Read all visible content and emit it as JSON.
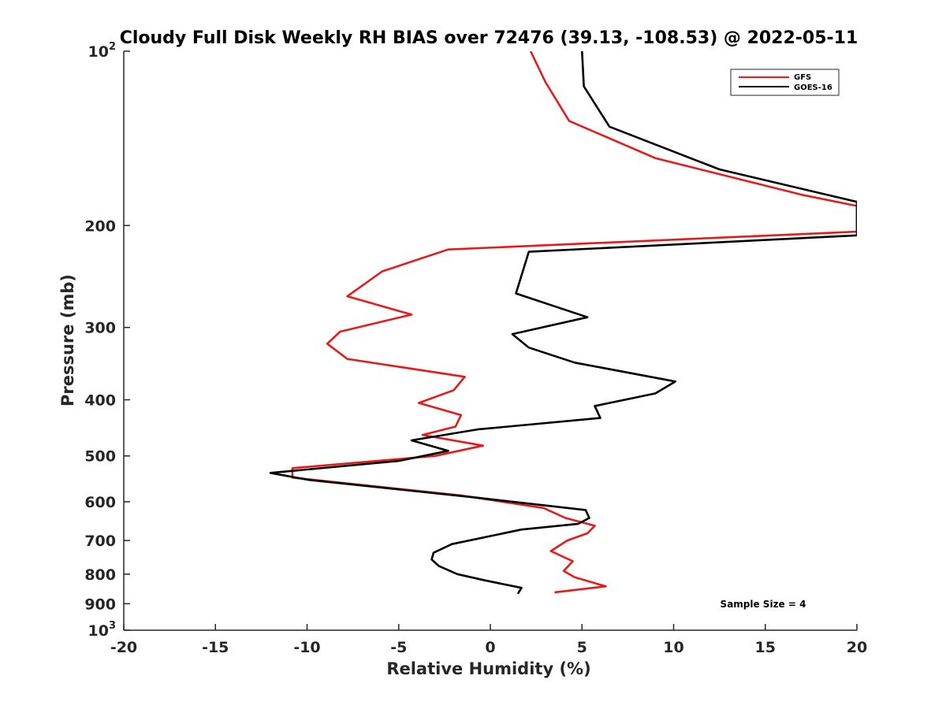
{
  "chart_data": {
    "type": "line",
    "title": "Cloudy Full Disk Weekly RH BIAS over 72476 (39.13, -108.53) @ 2022-05-11",
    "xlabel": "Relative Humidity (%)",
    "ylabel": "Pressure (mb)",
    "xlim": [
      -20,
      20
    ],
    "ylim": [
      1000,
      100
    ],
    "y_scale": "log",
    "grid": false,
    "legend_position": "top-right",
    "x_ticks": [
      "-20",
      "-15",
      "-10",
      "-5",
      "0",
      "5",
      "10",
      "15",
      "20"
    ],
    "y_ticks": [
      {
        "value": 100,
        "base": "10",
        "exp": "2"
      },
      {
        "value": 200,
        "label": "200"
      },
      {
        "value": 300,
        "label": "300"
      },
      {
        "value": 400,
        "label": "400"
      },
      {
        "value": 500,
        "label": "500"
      },
      {
        "value": 600,
        "label": "600"
      },
      {
        "value": 700,
        "label": "700"
      },
      {
        "value": 800,
        "label": "800"
      },
      {
        "value": 900,
        "label": "900"
      },
      {
        "value": 1000,
        "base": "10",
        "exp": "3"
      }
    ],
    "series": [
      {
        "name": "GFS",
        "color": "#e41a1c",
        "points": [
          [
            2.2,
            100
          ],
          [
            3.0,
            113
          ],
          [
            4.3,
            132
          ],
          [
            9.0,
            153
          ],
          [
            17.0,
            177
          ],
          [
            20.0,
            185
          ],
          [
            20.0,
            205
          ],
          [
            -2.3,
            220
          ],
          [
            -5.9,
            240
          ],
          [
            -7.8,
            265
          ],
          [
            -4.3,
            285
          ],
          [
            -8.2,
            305
          ],
          [
            -8.9,
            320
          ],
          [
            -7.8,
            340
          ],
          [
            -1.4,
            365
          ],
          [
            -2.0,
            385
          ],
          [
            -3.9,
            405
          ],
          [
            -1.6,
            425
          ],
          [
            -1.9,
            445
          ],
          [
            -3.7,
            460
          ],
          [
            -0.4,
            480
          ],
          [
            -3.0,
            500
          ],
          [
            -10.8,
            525
          ],
          [
            -10.8,
            545
          ],
          [
            -1.6,
            585
          ],
          [
            2.9,
            615
          ],
          [
            4.1,
            640
          ],
          [
            5.7,
            660
          ],
          [
            5.3,
            680
          ],
          [
            4.2,
            700
          ],
          [
            3.3,
            730
          ],
          [
            4.5,
            760
          ],
          [
            4.0,
            790
          ],
          [
            4.6,
            810
          ],
          [
            6.3,
            840
          ],
          [
            3.5,
            860
          ]
        ]
      },
      {
        "name": "GOES-16",
        "color": "#000000",
        "points": [
          [
            5.0,
            100
          ],
          [
            5.1,
            115
          ],
          [
            6.5,
            135
          ],
          [
            12.5,
            160
          ],
          [
            20.0,
            182
          ],
          [
            20.0,
            208
          ],
          [
            2.1,
            222
          ],
          [
            1.4,
            262
          ],
          [
            5.3,
            288
          ],
          [
            1.2,
            308
          ],
          [
            2.1,
            325
          ],
          [
            4.6,
            345
          ],
          [
            10.1,
            372
          ],
          [
            9.0,
            390
          ],
          [
            5.7,
            410
          ],
          [
            6.0,
            430
          ],
          [
            -0.7,
            450
          ],
          [
            -4.3,
            470
          ],
          [
            -2.3,
            490
          ],
          [
            -5.0,
            510
          ],
          [
            -12.0,
            535
          ],
          [
            -9.9,
            550
          ],
          [
            -0.8,
            590
          ],
          [
            5.2,
            620
          ],
          [
            5.4,
            640
          ],
          [
            4.8,
            655
          ],
          [
            1.7,
            670
          ],
          [
            -2.1,
            710
          ],
          [
            -3.1,
            735
          ],
          [
            -3.2,
            755
          ],
          [
            -2.8,
            775
          ],
          [
            -1.8,
            800
          ],
          [
            -0.3,
            820
          ],
          [
            1.7,
            845
          ],
          [
            1.5,
            865
          ]
        ]
      }
    ],
    "annotations": [
      {
        "text": "Sample Size = 4"
      }
    ]
  }
}
